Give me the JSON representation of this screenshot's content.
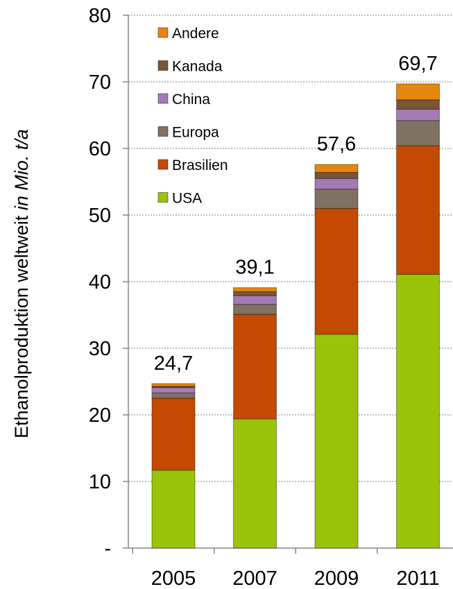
{
  "chart_data": {
    "type": "bar",
    "stacked": true,
    "categories": [
      "2005",
      "2007",
      "2009",
      "2011"
    ],
    "series": [
      {
        "name": "USA",
        "color": "#99c40a",
        "values": [
          11.7,
          19.4,
          32.1,
          41.1
        ]
      },
      {
        "name": "Brasilien",
        "color": "#c34a00",
        "values": [
          10.8,
          15.7,
          18.9,
          19.3
        ]
      },
      {
        "name": "Europa",
        "color": "#7f7263",
        "values": [
          0.8,
          1.5,
          2.9,
          3.8
        ]
      },
      {
        "name": "China",
        "color": "#a47bb5",
        "values": [
          0.8,
          1.3,
          1.6,
          1.7
        ]
      },
      {
        "name": "Kanada",
        "color": "#7a5637",
        "values": [
          0.2,
          0.6,
          0.9,
          1.4
        ]
      },
      {
        "name": "Andere",
        "color": "#e5870e",
        "values": [
          0.4,
          0.6,
          1.2,
          2.4
        ]
      }
    ],
    "totals": [
      "24,7",
      "39,1",
      "57,6",
      "69,7"
    ],
    "yticks": [
      "-",
      "10",
      "20",
      "30",
      "40",
      "50",
      "60",
      "70",
      "80"
    ],
    "ylim": [
      0,
      80
    ],
    "ylabel_main": "Ethanolproduktion weltweit ",
    "ylabel_unit": "in Mio. t/a",
    "grid": true,
    "legend_position": "top-left"
  }
}
